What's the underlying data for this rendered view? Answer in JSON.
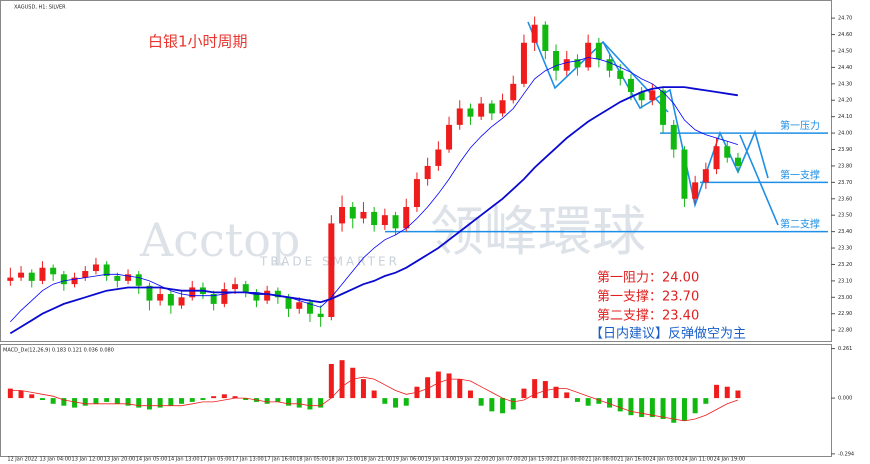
{
  "chart_data": [
    {
      "type": "candlestick",
      "title": "XAGUSD, H1: SILVER",
      "annotation": "白银1小时周期",
      "watermark": [
        "Acctop",
        "领峰環球",
        "TRADE SMARTER"
      ],
      "categories": [
        "12 Jan 2022",
        null,
        null,
        "13 Jan 04:00",
        null,
        null,
        "13 Jan 12:00",
        null,
        null,
        "13 Jan 20:00",
        null,
        null,
        "14 Jan 05:00",
        null,
        null,
        "14 Jan 13:00",
        null,
        null,
        "17 Jan 05:00",
        null,
        null,
        "17 Jan 13:00",
        null,
        null,
        "17 Jan 16:00",
        null,
        null,
        "18 Jan 05:00",
        null,
        null,
        "18 Jan 13:00",
        null,
        null,
        "18 Jan 21:00",
        null,
        null,
        "19 Jan 06:00",
        null,
        null,
        "19 Jan 14:00",
        null,
        null,
        "19 Jan 22:00",
        null,
        null,
        "20 Jan 07:00",
        null,
        null,
        "20 Jan 15:00",
        null,
        null,
        "21 Jan 00:00",
        null,
        null,
        "21 Jan 08:00",
        null,
        null,
        "21 Jan 16:00",
        null,
        null,
        "24 Jan 03:00",
        null,
        null,
        "24 Jan 11:00",
        null,
        null,
        "24 Jan 19:00",
        null,
        null
      ],
      "open": [
        23.1,
        23.12,
        23.15,
        23.1,
        23.18,
        23.14,
        23.08,
        23.12,
        23.16,
        23.2,
        23.13,
        23.1,
        23.14,
        23.07,
        22.98,
        23.02,
        22.95,
        23.0,
        23.06,
        23.02,
        22.96,
        23.05,
        23.08,
        23.03,
        22.98,
        23.04,
        23.0,
        22.93,
        22.97,
        22.9,
        22.88,
        23.45,
        23.55,
        23.48,
        23.52,
        23.44,
        23.5,
        23.42,
        23.55,
        23.72,
        23.8,
        23.9,
        24.05,
        24.15,
        24.1,
        24.18,
        24.12,
        24.2,
        24.3,
        24.55,
        24.66,
        24.5,
        24.38,
        24.45,
        24.4,
        24.55,
        24.45,
        24.38,
        24.33,
        24.25,
        24.2,
        24.26,
        24.05,
        23.9,
        23.6,
        23.7,
        23.78,
        23.92,
        23.85
      ],
      "high": [
        23.18,
        23.19,
        23.17,
        23.22,
        23.2,
        23.16,
        23.15,
        23.19,
        23.24,
        23.22,
        23.15,
        23.17,
        23.16,
        23.09,
        23.06,
        23.04,
        23.04,
        23.1,
        23.09,
        23.04,
        23.09,
        23.12,
        23.1,
        23.05,
        23.07,
        23.06,
        23.02,
        23.0,
        22.99,
        22.95,
        23.5,
        23.62,
        23.58,
        23.58,
        23.55,
        23.54,
        23.52,
        23.6,
        23.76,
        23.85,
        23.95,
        24.1,
        24.2,
        24.18,
        24.22,
        24.2,
        24.24,
        24.35,
        24.6,
        24.71,
        24.68,
        24.54,
        24.5,
        24.48,
        24.6,
        24.58,
        24.48,
        24.42,
        24.36,
        24.28,
        24.3,
        24.28,
        24.08,
        23.92,
        23.74,
        23.82,
        23.97,
        23.95,
        23.88
      ],
      "low": [
        23.07,
        23.1,
        23.06,
        23.08,
        23.1,
        23.04,
        23.06,
        23.1,
        23.14,
        23.1,
        23.06,
        23.08,
        23.02,
        22.92,
        22.95,
        22.9,
        22.93,
        22.98,
        22.99,
        22.92,
        22.94,
        23.02,
        23.0,
        22.94,
        22.96,
        22.96,
        22.88,
        22.9,
        22.85,
        22.82,
        22.86,
        23.4,
        23.42,
        23.45,
        23.4,
        23.41,
        23.38,
        23.4,
        23.52,
        23.68,
        23.77,
        23.88,
        24.02,
        24.05,
        24.08,
        24.08,
        24.1,
        24.18,
        24.28,
        24.5,
        24.45,
        24.32,
        24.35,
        24.35,
        24.38,
        24.4,
        24.34,
        24.29,
        24.2,
        24.15,
        24.17,
        24.0,
        23.85,
        23.55,
        23.57,
        23.66,
        23.75,
        23.82,
        23.76
      ],
      "close": [
        23.12,
        23.15,
        23.1,
        23.18,
        23.14,
        23.08,
        23.12,
        23.16,
        23.2,
        23.13,
        23.1,
        23.14,
        23.07,
        22.98,
        23.02,
        22.95,
        23.0,
        23.06,
        23.02,
        22.96,
        23.05,
        23.08,
        23.03,
        22.98,
        23.04,
        23.0,
        22.93,
        22.97,
        22.9,
        22.88,
        23.45,
        23.55,
        23.48,
        23.52,
        23.44,
        23.5,
        23.42,
        23.55,
        23.72,
        23.8,
        23.9,
        24.05,
        24.15,
        24.1,
        24.18,
        24.12,
        24.2,
        24.3,
        24.55,
        24.66,
        24.5,
        24.38,
        24.45,
        24.4,
        24.55,
        24.45,
        24.38,
        24.33,
        24.25,
        24.2,
        24.26,
        24.05,
        23.9,
        23.6,
        23.7,
        23.78,
        23.92,
        23.85,
        23.8
      ],
      "up_color": "#ee1c1c",
      "down_color": "#10b810",
      "series": [
        {
          "color": "#0000ff",
          "values": [
            22.85,
            22.92,
            22.98,
            23.04,
            23.08,
            23.1,
            23.11,
            23.12,
            23.13,
            23.14,
            23.14,
            23.13,
            23.12,
            23.1,
            23.07,
            23.04,
            23.02,
            23.01,
            23.01,
            23.01,
            23.02,
            23.03,
            23.03,
            23.03,
            23.02,
            23.01,
            23.0,
            22.98,
            22.96,
            22.94,
            23.0,
            23.08,
            23.16,
            23.24,
            23.3,
            23.35,
            23.38,
            23.42,
            23.48,
            23.55,
            23.63,
            23.72,
            23.82,
            23.91,
            23.98,
            24.04,
            24.09,
            24.15,
            24.24,
            24.33,
            24.38,
            24.41,
            24.43,
            24.44,
            24.46,
            24.45,
            24.43,
            24.4,
            24.37,
            24.33,
            24.3,
            24.25,
            24.18,
            24.08,
            24.02,
            23.99,
            23.97,
            23.95,
            23.93
          ]
        },
        {
          "color": "#0a0ad0",
          "values": [
            22.78,
            22.82,
            22.86,
            22.9,
            22.93,
            22.96,
            22.98,
            23.0,
            23.02,
            23.04,
            23.05,
            23.06,
            23.06,
            23.06,
            23.06,
            23.05,
            23.04,
            23.04,
            23.04,
            23.03,
            23.03,
            23.03,
            23.03,
            23.02,
            23.02,
            23.01,
            23.0,
            22.99,
            22.98,
            22.97,
            22.99,
            23.02,
            23.05,
            23.08,
            23.1,
            23.13,
            23.15,
            23.18,
            23.22,
            23.26,
            23.3,
            23.35,
            23.4,
            23.45,
            23.5,
            23.55,
            23.6,
            23.66,
            23.72,
            23.79,
            23.85,
            23.91,
            23.97,
            24.02,
            24.07,
            24.11,
            24.15,
            24.19,
            24.22,
            24.25,
            24.27,
            24.28,
            24.28,
            24.28,
            24.27,
            24.26,
            24.25,
            24.24,
            24.23
          ]
        }
      ],
      "ylim": [
        22.74,
        24.78
      ],
      "yticks": [
        {
          "value": 24.7,
          "label": "24.70"
        },
        {
          "value": 24.6,
          "label": "24.60"
        },
        {
          "value": 24.5,
          "label": "24.50"
        },
        {
          "value": 24.4,
          "label": "24.40"
        },
        {
          "value": 24.3,
          "label": "24.30"
        },
        {
          "value": 24.2,
          "label": "24.20"
        },
        {
          "value": 24.1,
          "label": "24.10"
        },
        {
          "value": 24.0,
          "label": "24.00"
        },
        {
          "value": 23.9,
          "label": "23.90"
        },
        {
          "value": 23.8,
          "label": "23.80"
        },
        {
          "value": 23.7,
          "label": "23.70"
        },
        {
          "value": 23.6,
          "label": "23.60"
        },
        {
          "value": 23.5,
          "label": "23.50"
        },
        {
          "value": 23.4,
          "label": "23.40"
        },
        {
          "value": 23.3,
          "label": "23.30"
        },
        {
          "value": 23.2,
          "label": "23.20"
        },
        {
          "value": 23.1,
          "label": "23.10"
        },
        {
          "value": 23.0,
          "label": "23.00"
        },
        {
          "value": 22.9,
          "label": "22.90"
        },
        {
          "value": 22.8,
          "label": "22.80"
        }
      ],
      "levels": [
        {
          "value": 24.0,
          "label": "第一压力"
        },
        {
          "value": 23.7,
          "label": "第一支撑"
        },
        {
          "value": 23.4,
          "label": "第二支撑"
        }
      ],
      "level_color": "#1e8fe6",
      "notes": [
        "第一阻力：24.00",
        "第一支撑：23.70",
        "第二支撑：23.40"
      ],
      "advice": "【日内建议】反弹做空为主"
    },
    {
      "type": "macd",
      "title": "MACD_Dx(12,26,9) 0.183 0.121 0.036 0.080",
      "values": [
        0.05,
        0.04,
        0.02,
        -0.01,
        -0.03,
        -0.04,
        -0.05,
        -0.04,
        -0.03,
        -0.02,
        -0.03,
        -0.04,
        -0.05,
        -0.06,
        -0.05,
        -0.04,
        -0.03,
        -0.02,
        -0.01,
        0.01,
        0.02,
        0.01,
        -0.01,
        -0.02,
        -0.03,
        -0.02,
        -0.04,
        -0.05,
        -0.06,
        -0.05,
        0.18,
        0.2,
        0.16,
        0.1,
        0.04,
        -0.03,
        -0.05,
        -0.04,
        0.06,
        0.11,
        0.14,
        0.13,
        0.1,
        0.04,
        -0.04,
        -0.07,
        -0.08,
        -0.06,
        0.05,
        0.1,
        0.09,
        0.06,
        0.03,
        -0.02,
        -0.04,
        -0.03,
        -0.05,
        -0.07,
        -0.09,
        -0.1,
        -0.1,
        -0.11,
        -0.13,
        -0.12,
        -0.08,
        -0.03,
        0.07,
        0.06,
        0.04
      ],
      "up_color": "#ee1c1c",
      "down_color": "#10b810",
      "series": [
        {
          "color": "#ee1c1c",
          "values": [
            0.04,
            0.04,
            0.03,
            0.02,
            0.01,
            -0.01,
            -0.02,
            -0.03,
            -0.03,
            -0.03,
            -0.03,
            -0.03,
            -0.04,
            -0.04,
            -0.04,
            -0.04,
            -0.04,
            -0.03,
            -0.02,
            -0.02,
            -0.01,
            0.0,
            0.0,
            -0.01,
            -0.02,
            -0.02,
            -0.03,
            -0.03,
            -0.04,
            -0.04,
            0.0,
            0.06,
            0.1,
            0.11,
            0.1,
            0.07,
            0.04,
            0.02,
            0.03,
            0.05,
            0.08,
            0.1,
            0.1,
            0.09,
            0.06,
            0.03,
            0.0,
            -0.02,
            -0.01,
            0.02,
            0.04,
            0.05,
            0.05,
            0.03,
            0.01,
            -0.01,
            -0.03,
            -0.05,
            -0.07,
            -0.08,
            -0.09,
            -0.1,
            -0.11,
            -0.12,
            -0.11,
            -0.09,
            -0.06,
            -0.03,
            -0.01
          ]
        }
      ],
      "ylim": [
        -0.3,
        0.28
      ],
      "yticks": [
        0.261,
        {
          "value": 0,
          "label": "0.000"
        },
        -0.294
      ]
    }
  ]
}
